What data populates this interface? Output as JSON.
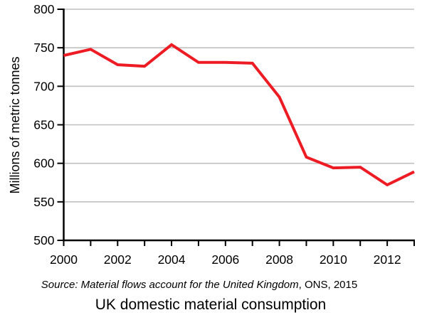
{
  "chart_data": {
    "type": "line",
    "title": "UK domestic material consumption",
    "source_italic": "Source: Material flows account for the United Kingdom",
    "source_regular": ", ONS, 2015",
    "ylabel": "Millions of metric tonnes",
    "xlabel": "",
    "x": [
      2000,
      2001,
      2002,
      2003,
      2004,
      2005,
      2006,
      2007,
      2008,
      2009,
      2010,
      2011,
      2012,
      2013
    ],
    "values": [
      740,
      748,
      728,
      726,
      754,
      731,
      731,
      730,
      686,
      608,
      594,
      595,
      572,
      589
    ],
    "ylim": [
      500,
      800
    ],
    "xlim": [
      2000,
      2013
    ],
    "y_ticks": [
      500,
      550,
      600,
      650,
      700,
      750,
      800
    ],
    "x_tick_labels": [
      2000,
      2002,
      2004,
      2006,
      2008,
      2010,
      2012
    ],
    "grid": true,
    "legend": false,
    "colors": {
      "line": "#ed1c24",
      "grid": "#c0c0c0",
      "axis": "#000000",
      "text": "#000000",
      "background": "#ffffff"
    }
  }
}
